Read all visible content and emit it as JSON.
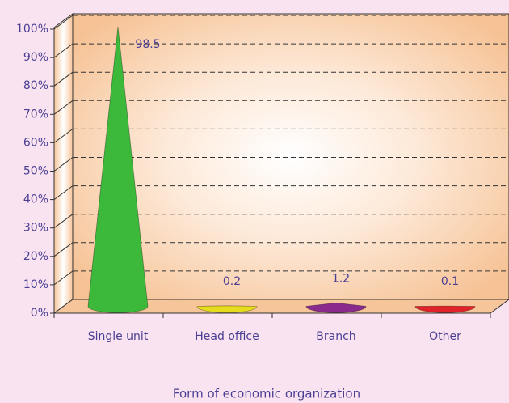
{
  "chart_data": {
    "type": "cone",
    "x_label": "Form of economic organization",
    "categories": [
      "Single unit",
      "Head office",
      "Branch",
      "Other"
    ],
    "values": [
      98.5,
      0.2,
      1.2,
      0.1
    ],
    "colors": [
      "#3cb83a",
      "#e6dc1e",
      "#8a2a8c",
      "#e0222a"
    ],
    "ylim": [
      0,
      100
    ],
    "yticks": [
      {
        "value": 0,
        "label": "0%"
      },
      {
        "value": 10,
        "label": "10%"
      },
      {
        "value": 20,
        "label": "20%"
      },
      {
        "value": 30,
        "label": "30%"
      },
      {
        "value": 40,
        "label": "40%"
      },
      {
        "value": 50,
        "label": "50%"
      },
      {
        "value": 60,
        "label": "60%"
      },
      {
        "value": 70,
        "label": "70%"
      },
      {
        "value": 80,
        "label": "80%"
      },
      {
        "value": 90,
        "label": "90%"
      },
      {
        "value": 100,
        "label": "100%"
      }
    ],
    "grid": true
  }
}
